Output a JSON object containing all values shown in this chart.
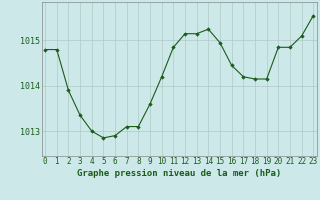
{
  "x": [
    0,
    1,
    2,
    3,
    4,
    5,
    6,
    7,
    8,
    9,
    10,
    11,
    12,
    13,
    14,
    15,
    16,
    17,
    18,
    19,
    20,
    21,
    22,
    23
  ],
  "y": [
    1014.8,
    1014.8,
    1013.9,
    1013.35,
    1013.0,
    1012.85,
    1012.9,
    1013.1,
    1013.1,
    1013.6,
    1014.2,
    1014.85,
    1015.15,
    1015.15,
    1015.25,
    1014.95,
    1014.45,
    1014.2,
    1014.15,
    1014.15,
    1014.85,
    1014.85,
    1015.1,
    1015.55
  ],
  "line_color": "#1a5c1a",
  "marker_color": "#1a5c1a",
  "bg_color": "#cce8e8",
  "grid_color": "#b0c8c8",
  "axis_color": "#888888",
  "title": "Graphe pression niveau de la mer (hPa)",
  "ylabel_ticks": [
    1013,
    1014,
    1015
  ],
  "xlabel_ticks": [
    0,
    1,
    2,
    3,
    4,
    5,
    6,
    7,
    8,
    9,
    10,
    11,
    12,
    13,
    14,
    15,
    16,
    17,
    18,
    19,
    20,
    21,
    22,
    23
  ],
  "ylim": [
    1012.45,
    1015.85
  ],
  "xlim": [
    -0.3,
    23.3
  ],
  "title_fontsize": 6.5,
  "tick_fontsize": 5.5
}
